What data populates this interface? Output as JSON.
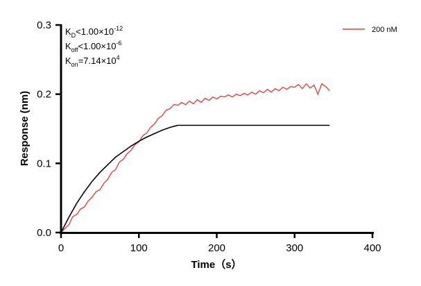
{
  "chart_data": {
    "type": "line",
    "xlabel": "Time（s）",
    "ylabel": "Response (nm)",
    "xlim": [
      0,
      400
    ],
    "ylim": [
      0,
      0.3
    ],
    "xticks": [
      "0",
      "100",
      "200",
      "300",
      "400"
    ],
    "yticks": [
      "0.0",
      "0.1",
      "0.2",
      "0.3"
    ],
    "grid": false,
    "legend_position": "top-right",
    "annotations": [
      {
        "main": "K",
        "sub": "D",
        "rel": "<1.00×10",
        "exp": "-12"
      },
      {
        "main": "K",
        "sub": "off",
        "rel": "<1.00×10",
        "exp": "-6"
      },
      {
        "main": "K",
        "sub": "on",
        "rel": "=7.14×10",
        "exp": "4"
      }
    ],
    "series": [
      {
        "name": "200 nM",
        "color": "#e8413f",
        "x": [
          0,
          5,
          10,
          15,
          20,
          25,
          30,
          35,
          40,
          45,
          50,
          55,
          60,
          65,
          70,
          75,
          80,
          85,
          90,
          95,
          100,
          105,
          110,
          115,
          120,
          125,
          130,
          135,
          140,
          145,
          150,
          155,
          160,
          165,
          170,
          175,
          180,
          185,
          190,
          195,
          200,
          205,
          210,
          215,
          220,
          225,
          230,
          235,
          240,
          245,
          250,
          255,
          260,
          265,
          270,
          275,
          280,
          285,
          290,
          295,
          300,
          305,
          310,
          315,
          320,
          325,
          330,
          335,
          340,
          345
        ],
        "y": [
          0.0,
          0.006,
          0.011,
          0.023,
          0.026,
          0.034,
          0.037,
          0.046,
          0.051,
          0.059,
          0.062,
          0.071,
          0.077,
          0.087,
          0.091,
          0.102,
          0.106,
          0.114,
          0.119,
          0.127,
          0.131,
          0.14,
          0.144,
          0.152,
          0.157,
          0.165,
          0.169,
          0.177,
          0.179,
          0.185,
          0.184,
          0.188,
          0.185,
          0.19,
          0.186,
          0.192,
          0.188,
          0.194,
          0.191,
          0.196,
          0.193,
          0.197,
          0.196,
          0.199,
          0.196,
          0.2,
          0.198,
          0.201,
          0.199,
          0.203,
          0.2,
          0.205,
          0.202,
          0.207,
          0.203,
          0.208,
          0.205,
          0.21,
          0.207,
          0.211,
          0.21,
          0.214,
          0.208,
          0.215,
          0.209,
          0.213,
          0.2,
          0.215,
          0.211,
          0.205
        ]
      },
      {
        "color": "#000000",
        "x": [
          0,
          10,
          20,
          30,
          40,
          50,
          60,
          70,
          80,
          90,
          100,
          110,
          120,
          130,
          140,
          150,
          345
        ],
        "y": [
          0,
          0.022,
          0.042,
          0.059,
          0.074,
          0.087,
          0.098,
          0.109,
          0.117,
          0.125,
          0.132,
          0.138,
          0.143,
          0.148,
          0.152,
          0.155,
          0.155
        ]
      }
    ]
  }
}
